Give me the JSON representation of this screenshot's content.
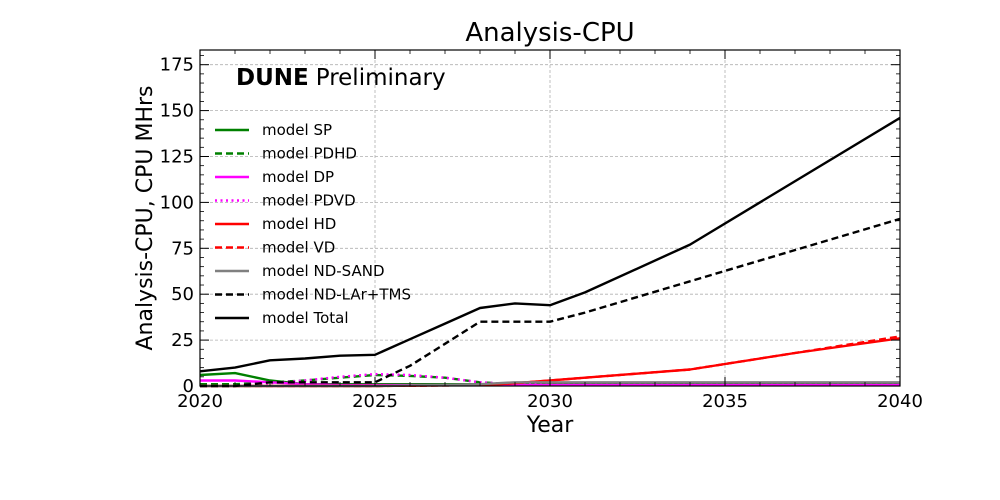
{
  "chart_data": {
    "type": "line",
    "title": "Analysis-CPU",
    "xlabel": "Year",
    "ylabel": "Analysis-CPU, CPU MHrs",
    "xlim": [
      2020,
      2040
    ],
    "ylim": [
      0,
      183
    ],
    "xticks": [
      2020,
      2025,
      2030,
      2035,
      2040
    ],
    "yticks": [
      0,
      25,
      50,
      75,
      100,
      125,
      150,
      175
    ],
    "grid": true,
    "legend_position": "upper-left",
    "annotation": {
      "bold": "DUNE",
      "normal": "Preliminary"
    },
    "series": [
      {
        "name": "model SP",
        "color": "#008000",
        "dash": "solid",
        "x": [
          2020,
          2021,
          2022,
          2023,
          2024,
          2025,
          2026,
          2027,
          2028,
          2029,
          2030,
          2034,
          2040
        ],
        "y": [
          6,
          7,
          3,
          1,
          1,
          1,
          1,
          1,
          1,
          1,
          1,
          1,
          1
        ]
      },
      {
        "name": "model PDHD",
        "color": "#008000",
        "dash": "dashed",
        "x": [
          2020,
          2021,
          2022,
          2023,
          2024,
          2025,
          2026,
          2027,
          2028,
          2029,
          2030,
          2034,
          2040
        ],
        "y": [
          1,
          1,
          2,
          3,
          4.5,
          6,
          5.5,
          4.5,
          2,
          1,
          0.5,
          0.5,
          0.5
        ]
      },
      {
        "name": "model DP",
        "color": "#ff00ff",
        "dash": "solid",
        "x": [
          2020,
          2021,
          2022,
          2023,
          2024,
          2025,
          2026,
          2027,
          2028,
          2029,
          2030,
          2034,
          2040
        ],
        "y": [
          3,
          3,
          2,
          1,
          0.5,
          0.5,
          0.5,
          0.5,
          0.5,
          0.5,
          0.5,
          0.5,
          0.5
        ]
      },
      {
        "name": "model PDVD",
        "color": "#ff00ff",
        "dash": "dotted",
        "x": [
          2020,
          2021,
          2022,
          2023,
          2024,
          2025,
          2026,
          2027,
          2028,
          2029,
          2030,
          2034,
          2040
        ],
        "y": [
          0,
          0,
          1.5,
          3,
          5,
          6.5,
          6,
          4.5,
          2,
          1,
          0.5,
          0.5,
          0.5
        ]
      },
      {
        "name": "model HD",
        "color": "#ff0000",
        "dash": "solid",
        "x": [
          2020,
          2025,
          2028,
          2029,
          2030,
          2031,
          2034,
          2037,
          2040
        ],
        "y": [
          0,
          0,
          0.5,
          1.5,
          3,
          4.5,
          9,
          18,
          26
        ]
      },
      {
        "name": "model VD",
        "color": "#ff0000",
        "dash": "dashed",
        "x": [
          2020,
          2025,
          2028,
          2029,
          2030,
          2031,
          2034,
          2037,
          2040
        ],
        "y": [
          0,
          0,
          0.5,
          1.5,
          3,
          4.5,
          9,
          18,
          27
        ]
      },
      {
        "name": "model ND-SAND",
        "color": "#808080",
        "dash": "solid",
        "x": [
          2020,
          2025,
          2028,
          2029,
          2030,
          2040
        ],
        "y": [
          0,
          0,
          1,
          2,
          2,
          2
        ]
      },
      {
        "name": "model ND-LAr+TMS",
        "color": "#000000",
        "dash": "dashed",
        "x": [
          2020,
          2021,
          2022,
          2023,
          2024,
          2025,
          2026,
          2027,
          2028,
          2029,
          2030,
          2031,
          2034,
          2040
        ],
        "y": [
          0,
          0,
          2,
          2,
          2,
          2,
          11,
          23,
          35,
          35,
          35,
          40,
          57,
          91
        ]
      },
      {
        "name": "model Total",
        "color": "#000000",
        "dash": "solid",
        "x": [
          2020,
          2021,
          2022,
          2023,
          2024,
          2025,
          2026,
          2027,
          2028,
          2029,
          2030,
          2031,
          2034,
          2040
        ],
        "y": [
          8,
          10,
          14,
          15,
          16.5,
          17,
          25.5,
          34,
          42.5,
          45,
          44,
          51,
          77,
          146
        ]
      }
    ]
  }
}
